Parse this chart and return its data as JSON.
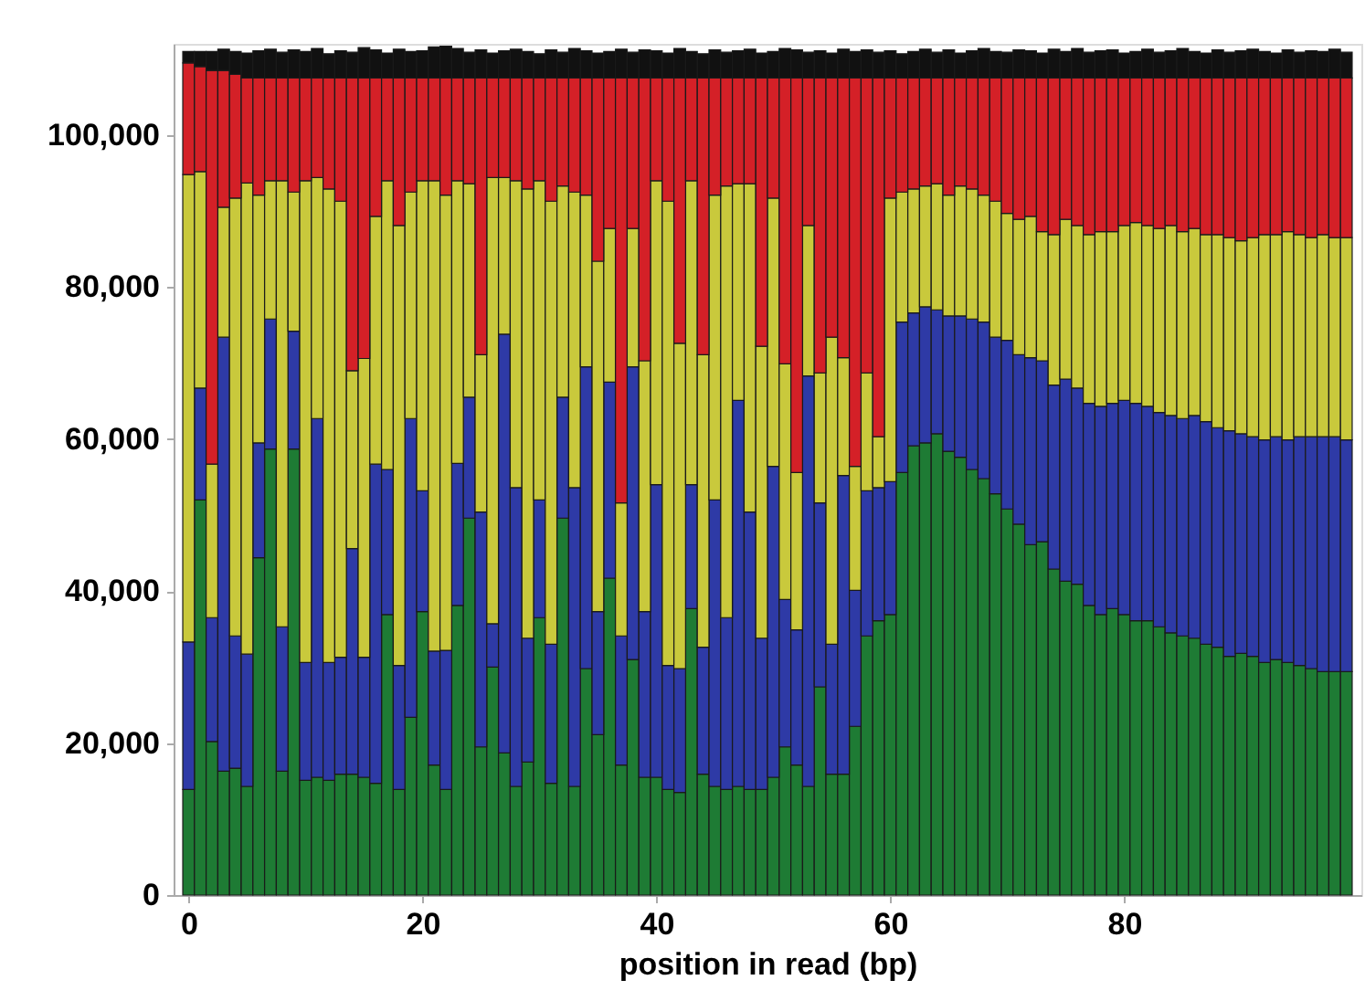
{
  "chart_data": {
    "type": "bar",
    "stacked": true,
    "xlabel": "position in read (bp)",
    "x": [
      0,
      1,
      2,
      3,
      4,
      5,
      6,
      7,
      8,
      9,
      10,
      11,
      12,
      13,
      14,
      15,
      16,
      17,
      18,
      19,
      20,
      21,
      22,
      23,
      24,
      25,
      26,
      27,
      28,
      29,
      30,
      31,
      32,
      33,
      34,
      35,
      36,
      37,
      38,
      39,
      40,
      41,
      42,
      43,
      44,
      45,
      46,
      47,
      48,
      49,
      50,
      51,
      52,
      53,
      54,
      55,
      56,
      57,
      58,
      59,
      60,
      61,
      62,
      63,
      64,
      65,
      66,
      67,
      68,
      69,
      70,
      71,
      72,
      73,
      74,
      75,
      76,
      77,
      78,
      79,
      80,
      81,
      82,
      83,
      84,
      85,
      86,
      87,
      88,
      89,
      90,
      91,
      92,
      93,
      94,
      95,
      96,
      97,
      98,
      99
    ],
    "xlim": [
      -0.5,
      99.5
    ],
    "xticks": [
      0,
      20,
      40,
      60,
      80
    ],
    "ylim": [
      0,
      112000
    ],
    "yticks": [
      {
        "value": 0,
        "label": "0"
      },
      {
        "value": 20000,
        "label": "20,000"
      },
      {
        "value": 40000,
        "label": "40,000"
      },
      {
        "value": 60000,
        "label": "60,000"
      },
      {
        "value": 80000,
        "label": "80,000"
      },
      {
        "value": 100000,
        "label": "100,000"
      }
    ],
    "grid": false,
    "legend": false,
    "series": [
      {
        "color": "#1e7b34",
        "values": [
          13900,
          52000,
          20200,
          16300,
          16700,
          14300,
          44400,
          58700,
          16300,
          58700,
          15100,
          15500,
          15100,
          15900,
          15900,
          15500,
          14700,
          36900,
          13900,
          23400,
          37300,
          17100,
          13900,
          38100,
          49600,
          19500,
          30000,
          18700,
          14300,
          17500,
          36500,
          14700,
          49600,
          14300,
          29800,
          21100,
          41700,
          17100,
          31000,
          15500,
          15500,
          13900,
          13500,
          37700,
          15900,
          14300,
          13900,
          14300,
          13900,
          13900,
          15500,
          19500,
          17100,
          14300,
          27400,
          15900,
          15900,
          22200,
          34100,
          36100,
          36900,
          55600,
          59100,
          59500,
          60700,
          58400,
          57600,
          56000,
          54800,
          52800,
          50800,
          48800,
          46100,
          46500,
          42900,
          41300,
          40900,
          38100,
          36900,
          37700,
          36900,
          36100,
          36100,
          35300,
          34500,
          34100,
          33800,
          33000,
          32600,
          31400,
          31800,
          31400,
          30600,
          31000,
          30600,
          30200,
          29800,
          29400,
          29400,
          29400
        ]
      },
      {
        "color": "#2e3aa6",
        "values": [
          19400,
          14700,
          16300,
          57100,
          17400,
          17400,
          15100,
          17100,
          19000,
          15500,
          15500,
          47200,
          15500,
          15400,
          29700,
          15800,
          42000,
          19100,
          16300,
          39300,
          15900,
          15000,
          18300,
          18700,
          15900,
          30900,
          5700,
          55100,
          39300,
          16300,
          15500,
          18300,
          15900,
          39300,
          39700,
          16200,
          25800,
          17000,
          38500,
          21800,
          38500,
          16300,
          16300,
          16300,
          16700,
          37700,
          22600,
          50800,
          36500,
          19900,
          40900,
          19400,
          17800,
          54000,
          24200,
          17100,
          39300,
          17900,
          19100,
          17500,
          17500,
          19800,
          17500,
          17900,
          16300,
          17800,
          18600,
          19800,
          20600,
          20600,
          22200,
          22300,
          24600,
          23800,
          24200,
          26600,
          25800,
          26600,
          27400,
          27000,
          28200,
          28600,
          28200,
          28200,
          28600,
          28600,
          29300,
          29300,
          28900,
          29700,
          28900,
          28900,
          29300,
          29300,
          29300,
          30100,
          30500,
          30900,
          30900,
          30500
        ]
      },
      {
        "color": "#c9c93c",
        "values": [
          61500,
          28500,
          20200,
          17100,
          57600,
          62000,
          32600,
          18200,
          58700,
          18300,
          63400,
          31700,
          62300,
          60000,
          23400,
          39300,
          32600,
          38000,
          57900,
          29800,
          40800,
          61900,
          59900,
          37200,
          28100,
          20700,
          58700,
          20600,
          40400,
          59100,
          42000,
          58300,
          27800,
          38900,
          22600,
          46100,
          20200,
          17500,
          18200,
          33000,
          40000,
          61100,
          42800,
          40000,
          38500,
          40100,
          56800,
          28500,
          43200,
          38400,
          35300,
          31000,
          20700,
          19800,
          17100,
          40400,
          15500,
          16300,
          15500,
          6700,
          37300,
          17100,
          16300,
          15900,
          16600,
          15900,
          17100,
          17100,
          16700,
          17900,
          16700,
          17800,
          18600,
          17000,
          19800,
          21000,
          21400,
          22200,
          23000,
          22600,
          23000,
          23800,
          23800,
          24200,
          25000,
          24600,
          24600,
          24600,
          25400,
          25400,
          25400,
          26200,
          27000,
          26600,
          27400,
          26600,
          26200,
          26600,
          26200,
          26600
        ]
      },
      {
        "color": "#d42027",
        "values": [
          14700,
          13800,
          51800,
          18000,
          16300,
          13800,
          15400,
          13500,
          13500,
          15000,
          13500,
          13100,
          14600,
          16200,
          38500,
          36900,
          18200,
          13500,
          19400,
          15000,
          13500,
          13500,
          15400,
          13500,
          13900,
          36400,
          13100,
          13100,
          13500,
          14600,
          13500,
          16200,
          14200,
          15000,
          15400,
          24100,
          19800,
          55900,
          19800,
          37200,
          13500,
          16200,
          34900,
          13500,
          36400,
          15400,
          14200,
          13900,
          13900,
          35300,
          15800,
          37600,
          51900,
          19400,
          38800,
          34100,
          36800,
          51100,
          38800,
          47200,
          15800,
          15000,
          14600,
          14200,
          13900,
          15400,
          14200,
          14600,
          15400,
          16200,
          17800,
          18600,
          18200,
          20200,
          20600,
          18600,
          19400,
          20600,
          20200,
          20200,
          19400,
          19000,
          19400,
          19800,
          19400,
          20200,
          19800,
          20600,
          20600,
          21000,
          21400,
          21000,
          20600,
          20600,
          20200,
          20600,
          21000,
          20600,
          21000,
          21000
        ]
      },
      {
        "color": "#111111",
        "values": [
          1500,
          2000,
          2500,
          2800,
          3000,
          3300,
          3600,
          3800,
          3400,
          3700,
          3500,
          3900,
          3200,
          3600,
          3400,
          4000,
          3700,
          3300,
          3800,
          3500,
          3600,
          4100,
          4200,
          3900,
          3400,
          3700,
          3300,
          3600,
          3800,
          3500,
          3200,
          3700,
          3400,
          3900,
          3600,
          3300,
          3500,
          3800,
          3400,
          3700,
          3600,
          3300,
          3900,
          3500,
          3200,
          3700,
          3400,
          3600,
          3800,
          3300,
          3500,
          3900,
          3700,
          3400,
          3600,
          3300,
          3800,
          3500,
          3700,
          3400,
          3600,
          3200,
          3500,
          3800,
          3400,
          3700,
          3300,
          3600,
          3900,
          3500,
          3400,
          3700,
          3600,
          3300,
          3800,
          3500,
          3900,
          3400,
          3600,
          3700,
          3300,
          3500,
          3800,
          3400,
          3600,
          3900,
          3500,
          3300,
          3700,
          3400,
          3600,
          3800,
          3500,
          3300,
          3700,
          3400,
          3600,
          3500,
          3800,
          3400
        ]
      }
    ]
  }
}
